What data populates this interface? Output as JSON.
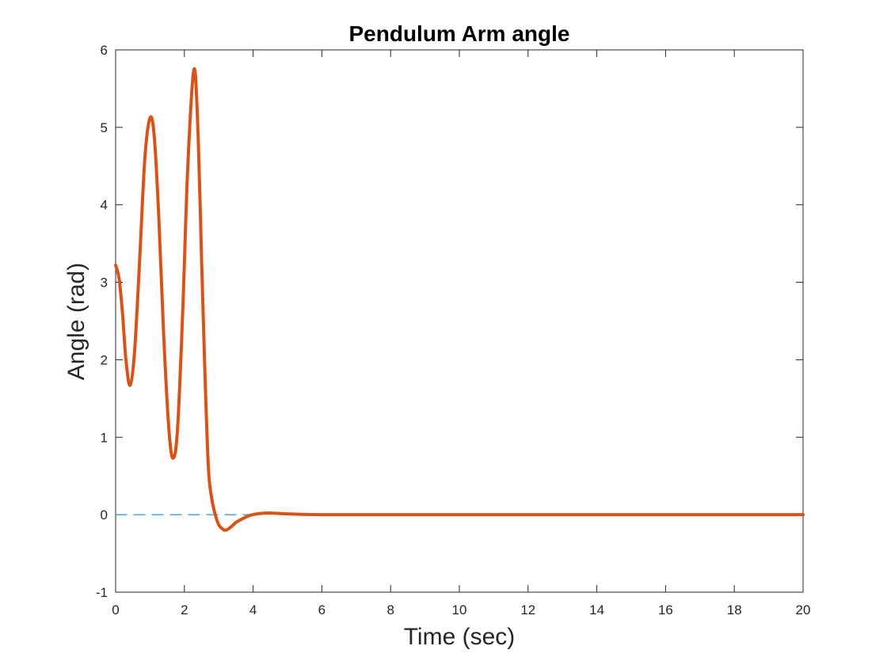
{
  "chart_data": {
    "type": "line",
    "title": "Pendulum Arm angle",
    "xlabel": "Time (sec)",
    "ylabel": "Angle (rad)",
    "xlim": [
      0,
      20
    ],
    "ylim": [
      -1,
      6
    ],
    "xticks": [
      "0",
      "2",
      "4",
      "6",
      "8",
      "10",
      "12",
      "14",
      "16",
      "18",
      "20"
    ],
    "yticks": [
      "-1",
      "0",
      "1",
      "2",
      "3",
      "4",
      "5",
      "6"
    ],
    "grid": false,
    "series": [
      {
        "style": "dashed",
        "color": "#4DA6D9",
        "x": [
          0,
          4
        ],
        "y": [
          0,
          0
        ]
      },
      {
        "style": "solid",
        "color": "#D95319",
        "x": [
          0,
          0.1,
          0.2,
          0.3,
          0.42,
          0.55,
          0.7,
          0.85,
          1.0,
          1.12,
          1.25,
          1.4,
          1.55,
          1.67,
          1.8,
          1.95,
          2.1,
          2.28,
          2.4,
          2.5,
          2.6,
          2.7,
          2.8,
          2.9,
          3.0,
          3.1,
          3.2,
          3.35,
          3.5,
          3.7,
          3.9,
          4.1,
          4.3,
          4.6,
          5,
          6,
          8,
          10,
          12,
          14,
          16,
          18,
          20
        ],
        "y": [
          3.22,
          3.05,
          2.6,
          2.0,
          1.67,
          2.1,
          3.3,
          4.6,
          5.12,
          4.9,
          3.9,
          2.3,
          1.1,
          0.73,
          1.1,
          2.6,
          4.5,
          5.75,
          4.9,
          3.3,
          1.8,
          0.6,
          0.2,
          0.0,
          -0.13,
          -0.18,
          -0.2,
          -0.16,
          -0.1,
          -0.05,
          -0.01,
          0.01,
          0.02,
          0.02,
          0.01,
          0.0,
          0.0,
          0.0,
          0.0,
          0.0,
          0.0,
          0.0,
          0.0
        ]
      }
    ]
  }
}
